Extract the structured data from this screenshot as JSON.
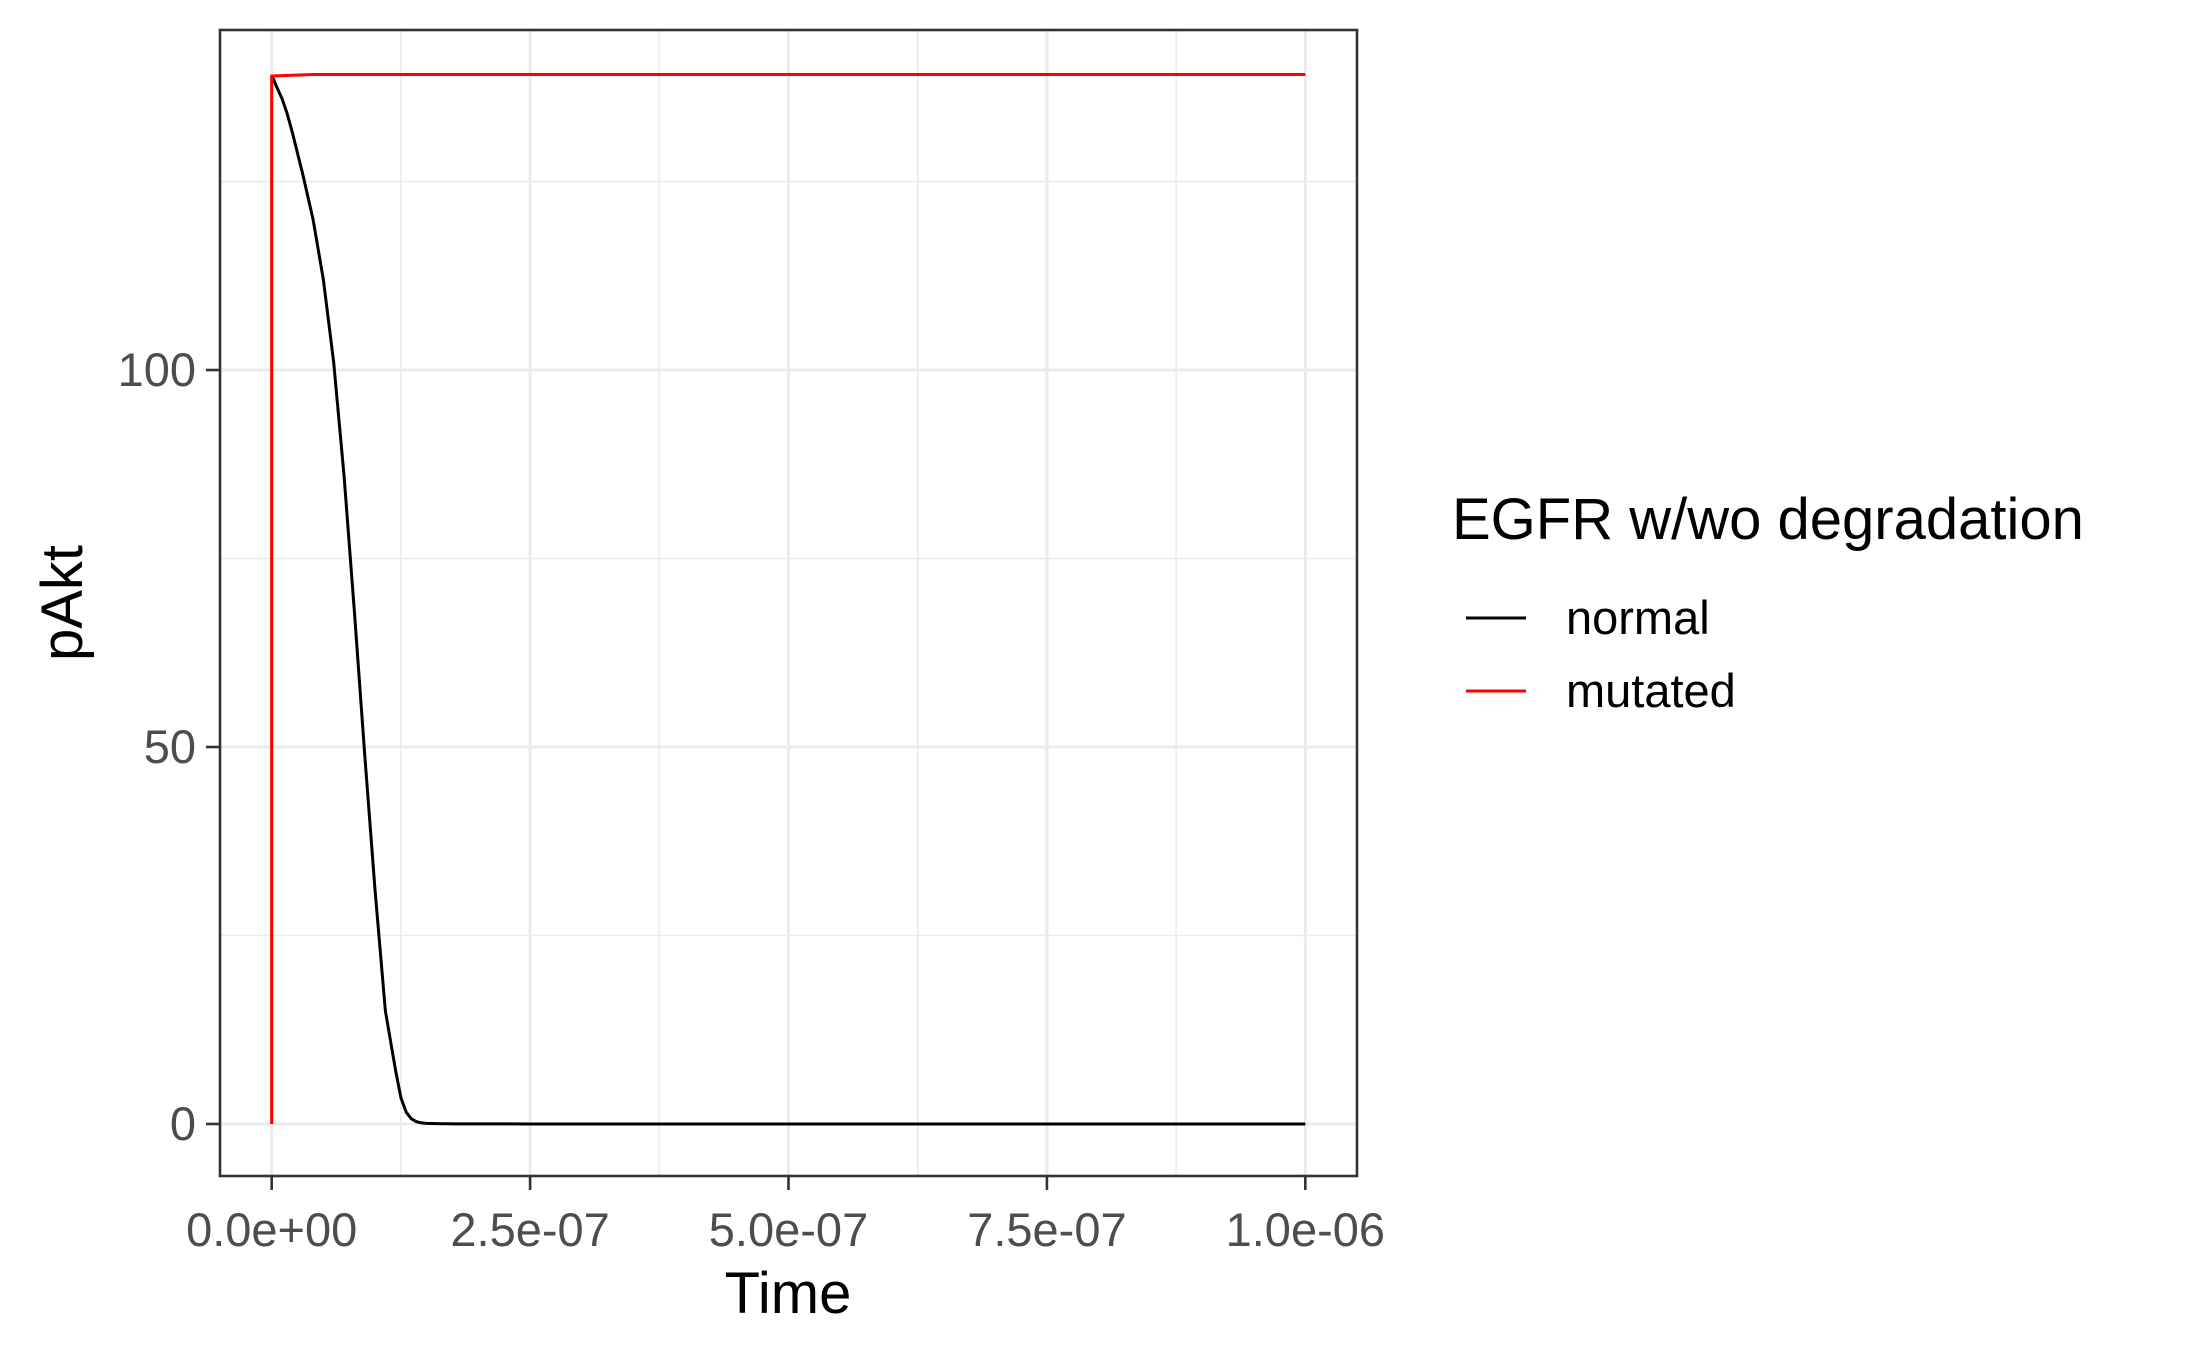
{
  "chart_data": {
    "type": "line",
    "title": "",
    "xlabel": "Time",
    "ylabel": "pAkt",
    "xlim": [
      -5e-08,
      1.05e-06
    ],
    "ylim": [
      -6.9,
      145.1
    ],
    "x_ticks": [
      0,
      2.5e-07,
      5e-07,
      7.5e-07,
      1e-06
    ],
    "x_tick_labels": [
      "0.0e+00",
      "2.5e-07",
      "5.0e-07",
      "7.5e-07",
      "1.0e-06"
    ],
    "y_ticks": [
      0,
      50,
      100
    ],
    "y_tick_labels": [
      "0",
      "50",
      "100"
    ],
    "grid": true,
    "legend": {
      "title": "EGFR w/wo degradation",
      "position": "right"
    },
    "series": [
      {
        "name": "normal",
        "color": "#000000",
        "x": [
          0,
          2e-09,
          5e-09,
          1e-08,
          1.5e-08,
          2e-08,
          3e-08,
          4e-08,
          5e-08,
          6e-08,
          7e-08,
          8e-08,
          9e-08,
          1e-07,
          1.1e-07,
          1.2e-07,
          1.25e-07,
          1.3e-07,
          1.35e-07,
          1.4e-07,
          1.45e-07,
          1.5e-07,
          1.6e-07,
          1.8e-07,
          2e-07,
          2.5e-07,
          5e-07,
          7.5e-07,
          1e-06
        ],
        "y": [
          139,
          138.5,
          137.5,
          136,
          134,
          131.5,
          126,
          120,
          112,
          101,
          86,
          68,
          49,
          31,
          15,
          7,
          3.5,
          1.6,
          0.7,
          0.3,
          0.15,
          0.08,
          0.04,
          0.02,
          0.01,
          0.005,
          0,
          0,
          0
        ]
      },
      {
        "name": "mutated",
        "color": "#ff0000",
        "x": [
          0,
          0,
          4e-08,
          1e-06
        ],
        "y": [
          0,
          139,
          139.2,
          139.2
        ]
      }
    ]
  }
}
